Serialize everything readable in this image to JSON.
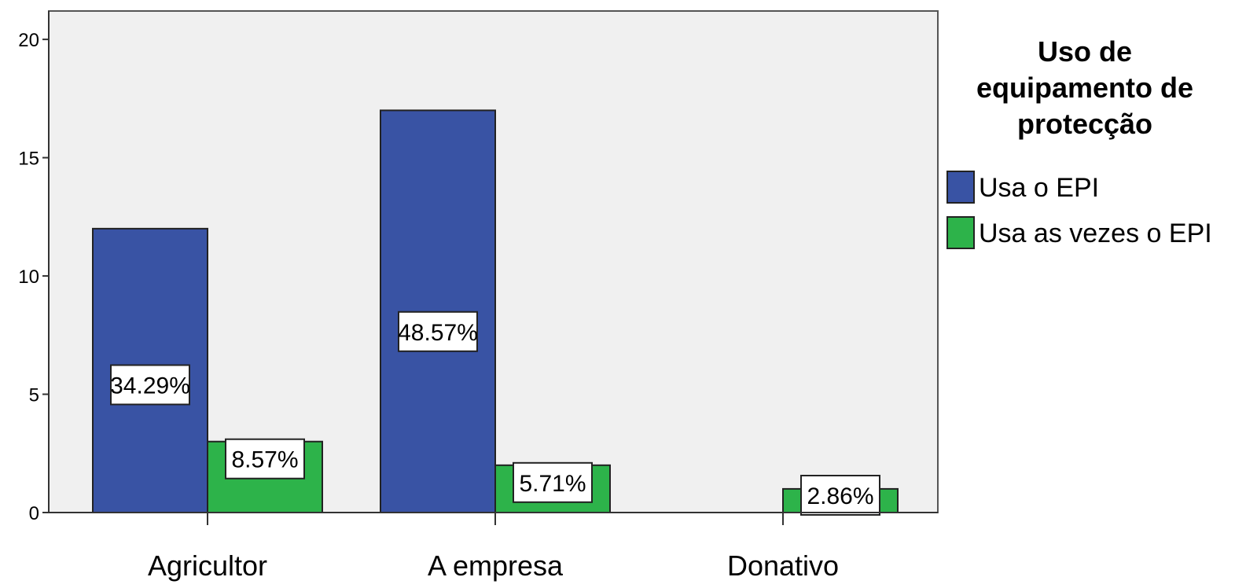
{
  "chart_data": {
    "type": "bar",
    "categories": [
      "Agricultor",
      "A empresa",
      "Donativo"
    ],
    "series": [
      {
        "name": "Usa o EPI",
        "values": [
          12,
          17,
          0
        ],
        "labels": [
          "34.29%",
          "48.57%",
          ""
        ]
      },
      {
        "name": "Usa as vezes o EPI",
        "values": [
          3,
          2,
          1
        ],
        "labels": [
          "8.57%",
          "5.71%",
          "2.86%"
        ]
      }
    ],
    "yticks": [
      "0",
      "5",
      "10",
      "15",
      "20"
    ],
    "ylim": [
      0,
      21.2
    ],
    "grid": false,
    "legend": {
      "position": "right",
      "title_lines": [
        "Uso de",
        "equipamento de",
        "protecção"
      ]
    },
    "colors": {
      "series": [
        "#3953a4",
        "#2db34a"
      ],
      "plot_bg": "#f0f0f0"
    }
  }
}
